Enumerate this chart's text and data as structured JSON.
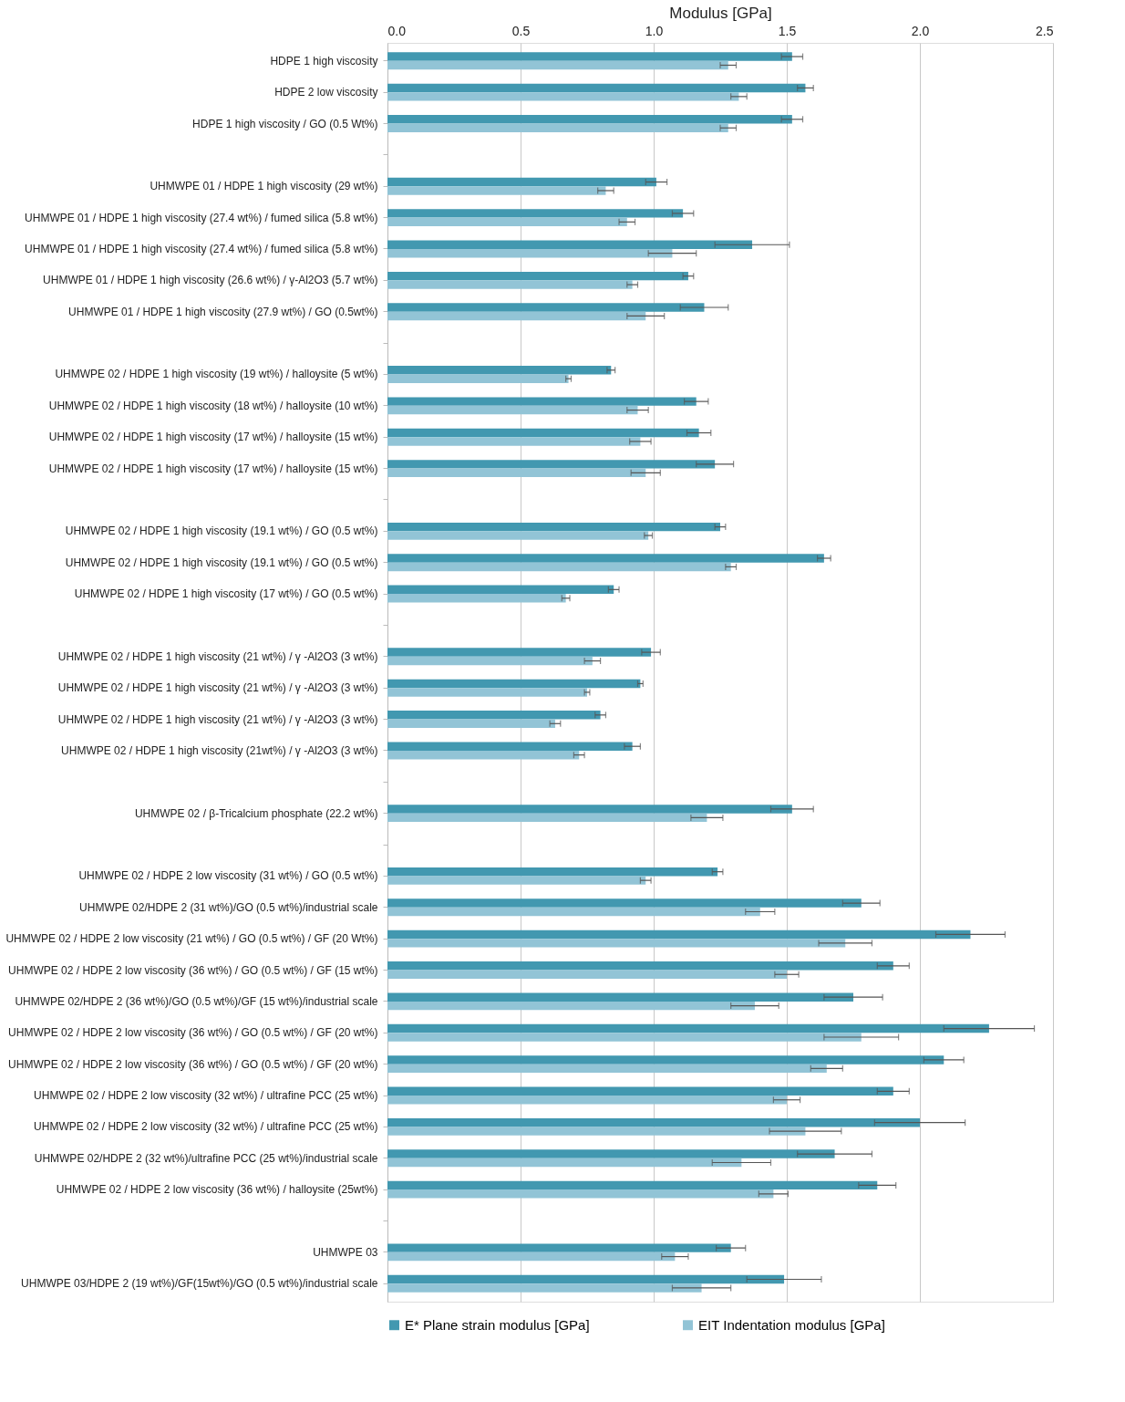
{
  "chart_data": {
    "type": "bar",
    "orientation": "horizontal",
    "xlabel": "Modulus [GPa]",
    "categories": [
      "HDPE 1 high viscosity",
      "HDPE 2 low viscosity",
      "HDPE 1 high viscosity / GO (0.5 Wt%)",
      null,
      "UHMWPE 01 / HDPE 1 high viscosity (29 wt%)",
      "UHMWPE 01 / HDPE 1 high viscosity (27.4 wt%) / fumed silica (5.8 wt%)",
      "UHMWPE 01 / HDPE 1 high viscosity (27.4 wt%) / fumed silica (5.8 wt%)",
      "UHMWPE 01 / HDPE 1 high viscosity (26.6 wt%) / γ-Al2O3 (5.7 wt%)",
      "UHMWPE 01 / HDPE 1 high viscosity (27.9 wt%) / GO (0.5wt%)",
      null,
      "UHMWPE 02 / HDPE 1 high viscosity (19 wt%) / halloysite (5 wt%)",
      "UHMWPE 02 / HDPE 1 high viscosity (18 wt%) / halloysite (10 wt%)",
      "UHMWPE 02 / HDPE 1 high viscosity (17  wt%) / halloysite (15 wt%)",
      "UHMWPE 02 / HDPE 1 high viscosity (17 wt%) / halloysite (15 wt%)",
      null,
      "UHMWPE 02 / HDPE 1 high viscosity (19.1 wt%) / GO (0.5 wt%)",
      "UHMWPE 02 / HDPE 1 high viscosity (19.1 wt%) / GO (0.5 wt%)",
      "UHMWPE 02 / HDPE 1 high viscosity (17 wt%) / GO (0.5 wt%)",
      null,
      "UHMWPE 02 / HDPE 1 high viscosity (21 wt%) /  γ -Al2O3 (3 wt%)",
      "UHMWPE 02 / HDPE 1 high viscosity (21 wt%) / γ -Al2O3 (3 wt%)",
      "UHMWPE 02 / HDPE 1 high viscosity (21 wt%) / γ -Al2O3 (3 wt%)",
      "UHMWPE 02 / HDPE 1 high viscosity (21wt%) / γ -Al2O3 (3 wt%)",
      null,
      "UHMWPE 02 /  β-Tricalcium phosphate (22.2 wt%)",
      null,
      "UHMWPE 02 / HDPE 2 low viscosity (31 wt%) / GO (0.5 wt%)",
      "UHMWPE 02/HDPE 2 (31 wt%)/GO (0.5 wt%)/industrial scale",
      "UHMWPE 02 / HDPE 2 low viscosity (21 wt%) / GO (0.5 wt%) / GF (20 Wt%)",
      "UHMWPE 02 / HDPE 2 low viscosity (36 wt%) / GO (0.5 wt%) / GF (15 wt%)",
      "UHMWPE 02/HDPE 2 (36 wt%)/GO (0.5 wt%)/GF (15 wt%)/industrial scale",
      "UHMWPE 02 / HDPE 2 low viscosity (36 wt%) / GO (0.5 wt%) / GF (20 wt%)",
      "UHMWPE 02 / HDPE 2 low viscosity (36 wt%) / GO (0.5 wt%) / GF (20 wt%)",
      "UHMWPE 02 / HDPE 2 low viscosity (32 wt%) / ultrafine PCC (25 wt%)",
      "UHMWPE 02 / HDPE 2 low viscosity (32 wt%) / ultrafine PCC (25 wt%)",
      "UHMWPE 02/HDPE 2 (32 wt%)/ultrafine PCC (25 wt%)/industrial scale",
      "UHMWPE 02 / HDPE 2 low viscosity (36 wt%) / halloysite (25wt%)",
      null,
      "UHMWPE 03",
      "UHMWPE 03/HDPE 2 (19 wt%)/GF(15wt%)/GO (0.5 wt%)/industrial scale"
    ],
    "series": [
      {
        "name": "E* Plane strain modulus [GPa]",
        "color": "#4298b0",
        "values": [
          1.52,
          1.57,
          1.52,
          null,
          1.01,
          1.11,
          1.37,
          1.13,
          1.19,
          null,
          0.84,
          1.16,
          1.17,
          1.23,
          null,
          1.25,
          1.64,
          0.85,
          null,
          0.99,
          0.95,
          0.8,
          0.92,
          null,
          1.52,
          null,
          1.24,
          1.78,
          2.19,
          1.9,
          1.75,
          2.26,
          2.09,
          1.9,
          2.0,
          1.68,
          1.84,
          null,
          1.29,
          1.49
        ],
        "errors": [
          0.04,
          0.03,
          0.04,
          null,
          0.04,
          0.04,
          0.14,
          0.02,
          0.09,
          null,
          0.015,
          0.045,
          0.045,
          0.07,
          null,
          0.02,
          0.025,
          0.02,
          null,
          0.035,
          0.01,
          0.02,
          0.03,
          null,
          0.08,
          null,
          0.02,
          0.07,
          0.13,
          0.06,
          0.11,
          0.17,
          0.075,
          0.06,
          0.17,
          0.14,
          0.07,
          null,
          0.055,
          0.14
        ]
      },
      {
        "name": "EIT Indentation modulus [GPa]",
        "color": "#92c4d6",
        "values": [
          1.28,
          1.32,
          1.28,
          null,
          0.82,
          0.9,
          1.07,
          0.92,
          0.97,
          null,
          0.68,
          0.94,
          0.95,
          0.97,
          null,
          0.98,
          1.29,
          0.67,
          null,
          0.77,
          0.75,
          0.63,
          0.72,
          null,
          1.2,
          null,
          0.97,
          1.4,
          1.72,
          1.5,
          1.38,
          1.78,
          1.65,
          1.5,
          1.57,
          1.33,
          1.45,
          null,
          1.08,
          1.18
        ],
        "errors": [
          0.03,
          0.03,
          0.03,
          null,
          0.03,
          0.03,
          0.09,
          0.02,
          0.07,
          null,
          0.01,
          0.04,
          0.04,
          0.055,
          null,
          0.015,
          0.02,
          0.015,
          null,
          0.03,
          0.01,
          0.02,
          0.02,
          null,
          0.06,
          null,
          0.02,
          0.055,
          0.1,
          0.045,
          0.09,
          0.14,
          0.06,
          0.05,
          0.135,
          0.11,
          0.055,
          null,
          0.05,
          0.11
        ]
      }
    ],
    "xlim": [
      0,
      2.5
    ],
    "xticks": [
      {
        "value": 0,
        "label": "0.0"
      },
      0.5,
      {
        "value": 1,
        "label": "1.0"
      },
      1.5,
      {
        "value": 2,
        "label": "2.0"
      },
      2.5
    ],
    "grid": "x",
    "legend": "bottom"
  }
}
